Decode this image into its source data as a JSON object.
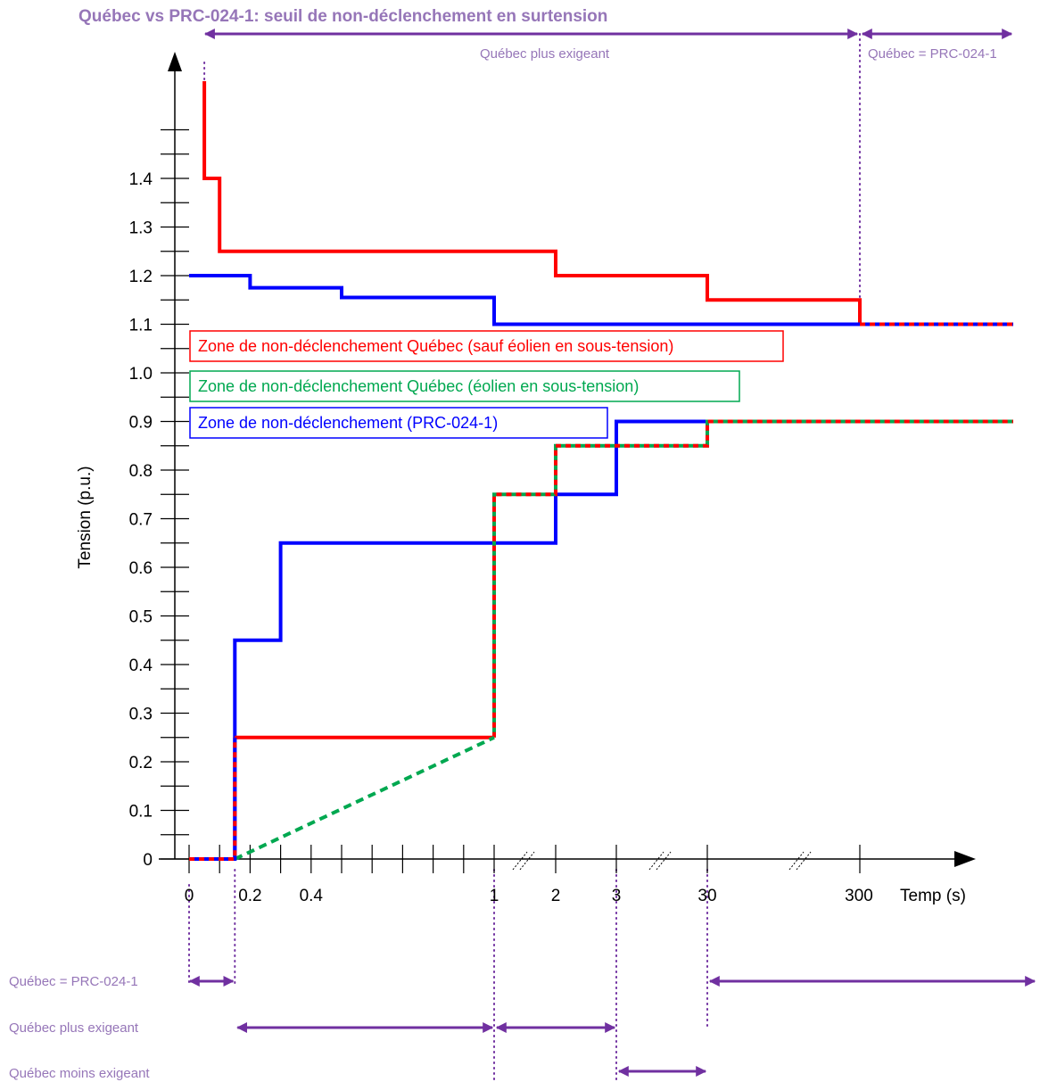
{
  "colors": {
    "quebec_red": "#ff0000",
    "quebec_wind_green": "#00a850",
    "prc_blue": "#0000ff",
    "annotation_purple": "#7030a0",
    "label_purple": "#9676b8"
  },
  "chart_data": {
    "type": "line",
    "title": "Québec vs PRC-024-1: seuil de non-déclenchement en surtension",
    "xlabel": "Temp (s)",
    "ylabel": "Tension (p.u.)",
    "x_scale": "piecewise-broken",
    "x_tick_labels": [
      "0",
      "0.2",
      "0.4",
      "1",
      "2",
      "3",
      "30",
      "300"
    ],
    "x_tick_values": [
      0,
      0.2,
      0.4,
      1,
      2,
      3,
      30,
      300
    ],
    "y_tick_labels": [
      "0",
      "0.1",
      "0.2",
      "0.3",
      "0.4",
      "0.5",
      "0.6",
      "0.7",
      "0.8",
      "0.9",
      "1.0",
      "1.1",
      "1.2",
      "1.3",
      "1.4"
    ],
    "ylim": [
      0,
      1.4
    ],
    "grid": false,
    "legend": [
      {
        "label": "Zone de non-déclenchement Québec (sauf éolien en sous-tension)",
        "color": "#ff0000"
      },
      {
        "label": "Zone de non-déclenchement Québec (éolien en sous-tension)",
        "color": "#00a850"
      },
      {
        "label": "Zone de non-déclenchement (PRC-024-1)",
        "color": "#0000ff"
      }
    ],
    "series": [
      {
        "key": "quebec_over",
        "color": "#ff0000",
        "style": "solid",
        "x": [
          0.05,
          0.05,
          0.1,
          0.1,
          2,
          2,
          30,
          30,
          300,
          300
        ],
        "y": [
          1.6,
          1.4,
          1.4,
          1.25,
          1.25,
          1.2,
          1.2,
          1.15,
          1.15,
          1.1
        ]
      },
      {
        "key": "prc_over",
        "color": "#0000ff",
        "style": "solid",
        "x": [
          0,
          0.2,
          0.2,
          0.5,
          0.5,
          1,
          1,
          300
        ],
        "y": [
          1.2,
          1.2,
          1.175,
          1.175,
          1.155,
          1.155,
          1.1,
          1.1
        ]
      },
      {
        "key": "over_tail",
        "color": "#ff0000",
        "dash_color": "#0000ff",
        "style": "dashed",
        "x": [
          300,
          1000
        ],
        "y": [
          1.1,
          1.1
        ]
      },
      {
        "key": "prc_under",
        "color": "#0000ff",
        "style": "solid",
        "x": [
          0.15,
          0.15,
          0.3,
          0.3,
          2,
          2,
          3,
          3,
          30
        ],
        "y": [
          0,
          0.45,
          0.45,
          0.65,
          0.65,
          0.75,
          0.75,
          0.9,
          0.9
        ]
      },
      {
        "key": "quebec_under",
        "color": "#ff0000",
        "style": "solid",
        "x": [
          0.15,
          1
        ],
        "y": [
          0.25,
          0.25
        ]
      },
      {
        "key": "quebec_under_shared",
        "color": "#ff0000",
        "dash_color": "#00a850",
        "style": "dashed",
        "x": [
          1,
          1,
          2,
          2,
          30,
          30,
          1000
        ],
        "y": [
          0.25,
          0.75,
          0.75,
          0.85,
          0.85,
          0.9,
          0.9
        ]
      },
      {
        "key": "wind_ramp",
        "color": "#00a850",
        "style": "dashed",
        "x": [
          0.15,
          1
        ],
        "y": [
          0,
          0.25
        ]
      },
      {
        "key": "zero_segment",
        "color": "#ff0000",
        "dash_color": "#0000ff",
        "style": "dashed",
        "x": [
          0,
          0.15,
          0.15
        ],
        "y": [
          0,
          0,
          0.25
        ]
      }
    ]
  },
  "annotations": {
    "top": [
      {
        "label": "Québec plus exigeant",
        "from": 0.05,
        "to": 300
      },
      {
        "label": "Québec = PRC-024-1",
        "from": 300,
        "to": 1000
      }
    ],
    "bottom": [
      {
        "label": "Québec = PRC-024-1",
        "from": 0,
        "to": 0.15
      },
      {
        "label": "Québec plus exigeant",
        "from": 0.15,
        "to": 1
      },
      {
        "label": "Québec plus exigeant",
        "from": 3,
        "to": 30
      },
      {
        "label": "Québec moins exigeant",
        "from": 1,
        "to": 3
      },
      {
        "from": 30,
        "to": 1000
      }
    ],
    "bottom_labels": [
      "Québec = PRC-024-1",
      "Québec plus exigeant",
      "Québec moins exigeant"
    ]
  }
}
